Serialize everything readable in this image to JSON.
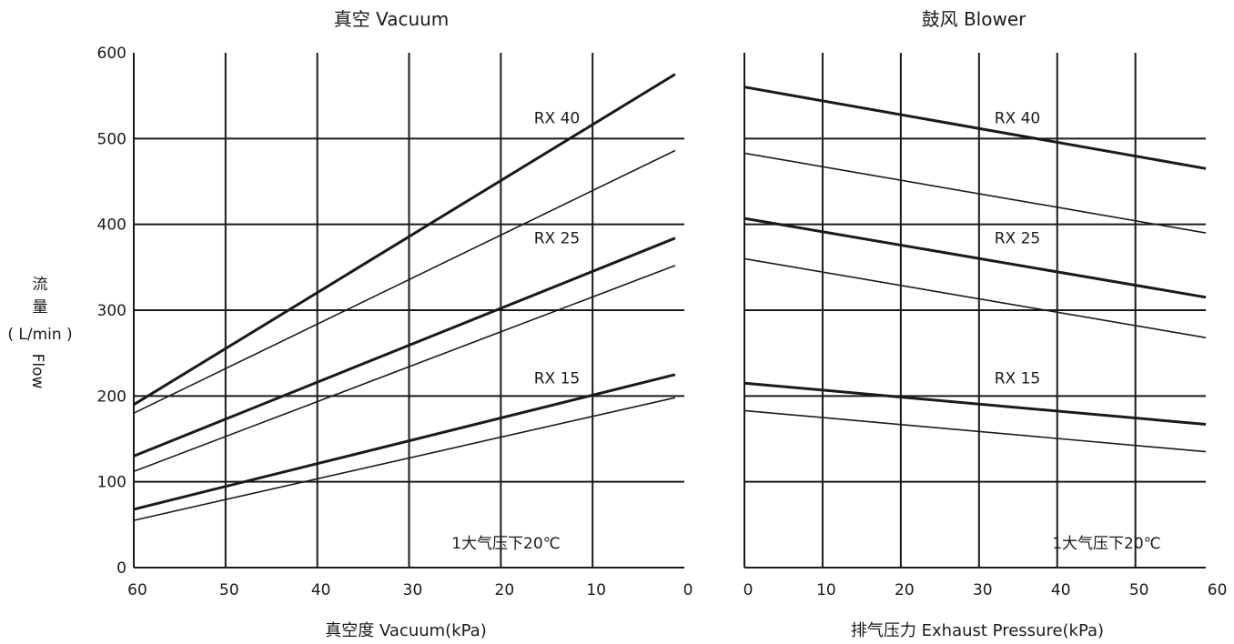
{
  "ylabel": {
    "cn1": "流",
    "cn2": "量",
    "unit": "( L/min )",
    "en": "Flow"
  },
  "chart_data": [
    {
      "type": "line",
      "title": "真空 Vacuum",
      "xlabel": "真空度  Vacuum(kPa)",
      "xlim": [
        60,
        0
      ],
      "ylim": [
        0,
        600
      ],
      "x_ticks": [
        "60",
        "50",
        "40",
        "30",
        "20",
        "10",
        "0"
      ],
      "y_ticks": [
        "0",
        "100",
        "200",
        "300",
        "400",
        "500",
        "600"
      ],
      "grid": true,
      "note": "1大气压下20℃",
      "model_labels": [
        {
          "text": "RX 40",
          "y": 520
        },
        {
          "text": "RX 25",
          "y": 380
        },
        {
          "text": "RX 15",
          "y": 217
        }
      ],
      "series": [
        {
          "model": "RX 40",
          "weight": "bold",
          "x": [
            60,
            1
          ],
          "y": [
            190,
            575
          ]
        },
        {
          "model": "RX 40",
          "weight": "thin",
          "x": [
            60,
            1
          ],
          "y": [
            180,
            486
          ]
        },
        {
          "model": "RX 25",
          "weight": "bold",
          "x": [
            60,
            1
          ],
          "y": [
            130,
            384
          ]
        },
        {
          "model": "RX 25",
          "weight": "thin",
          "x": [
            60,
            1
          ],
          "y": [
            112,
            352
          ]
        },
        {
          "model": "RX 15",
          "weight": "bold",
          "x": [
            60,
            1
          ],
          "y": [
            68,
            225
          ]
        },
        {
          "model": "RX 15",
          "weight": "thin",
          "x": [
            60,
            1
          ],
          "y": [
            55,
            198
          ]
        }
      ]
    },
    {
      "type": "line",
      "title": "鼓风 Blower",
      "xlabel": "排气压力  Exhaust Pressure(kPa)",
      "xlim": [
        0,
        59
      ],
      "ylim": [
        0,
        600
      ],
      "x_ticks": [
        "0",
        "10",
        "20",
        "30",
        "40",
        "50",
        "60"
      ],
      "grid": true,
      "note": "1大气压下20℃",
      "model_labels": [
        {
          "text": "RX 40",
          "y": 520
        },
        {
          "text": "RX 25",
          "y": 380
        },
        {
          "text": "RX 15",
          "y": 217
        }
      ],
      "series": [
        {
          "model": "RX 40",
          "weight": "bold",
          "x": [
            0,
            59
          ],
          "y": [
            560,
            465
          ]
        },
        {
          "model": "RX 40",
          "weight": "thin",
          "x": [
            0,
            59
          ],
          "y": [
            483,
            390
          ]
        },
        {
          "model": "RX 25",
          "weight": "bold",
          "x": [
            0,
            59
          ],
          "y": [
            407,
            315
          ]
        },
        {
          "model": "RX 25",
          "weight": "thin",
          "x": [
            0,
            59
          ],
          "y": [
            360,
            268
          ]
        },
        {
          "model": "RX 15",
          "weight": "bold",
          "x": [
            0,
            59
          ],
          "y": [
            215,
            167
          ]
        },
        {
          "model": "RX 15",
          "weight": "thin",
          "x": [
            0,
            59
          ],
          "y": [
            183,
            135
          ]
        }
      ]
    }
  ]
}
